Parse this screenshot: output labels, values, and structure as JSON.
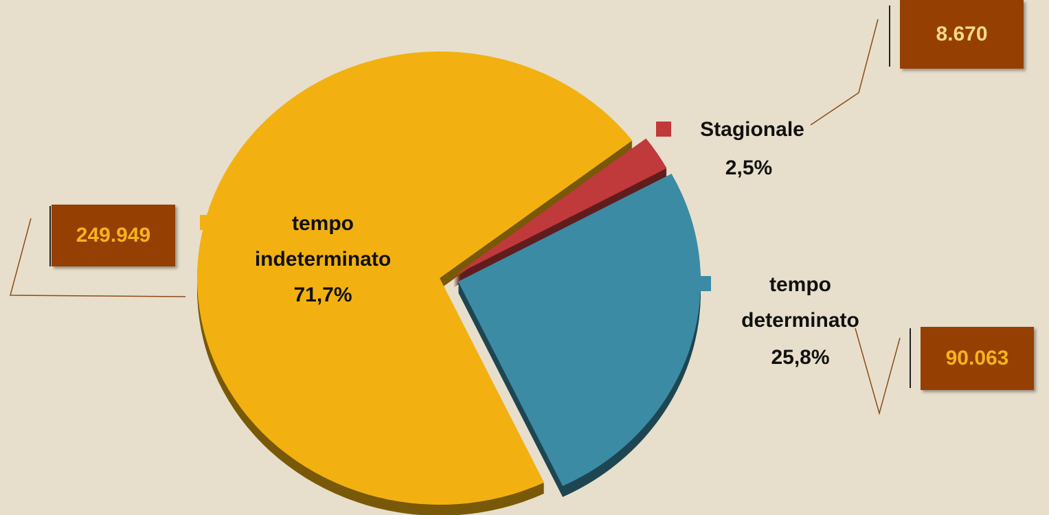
{
  "chart_data": {
    "type": "pie",
    "categories": [
      "Stagionale",
      "tempo determinato",
      "tempo indeterminato"
    ],
    "values": [
      2.5,
      25.8,
      71.7
    ],
    "value_labels": [
      "2,5%",
      "25,8%",
      "71,7%"
    ],
    "counts": [
      8670,
      90063,
      249949
    ],
    "count_labels": [
      "8.670",
      "90.063",
      "249.949"
    ],
    "colors": [
      "#c0393b",
      "#3b8ba4",
      "#f2b110"
    ]
  }
}
